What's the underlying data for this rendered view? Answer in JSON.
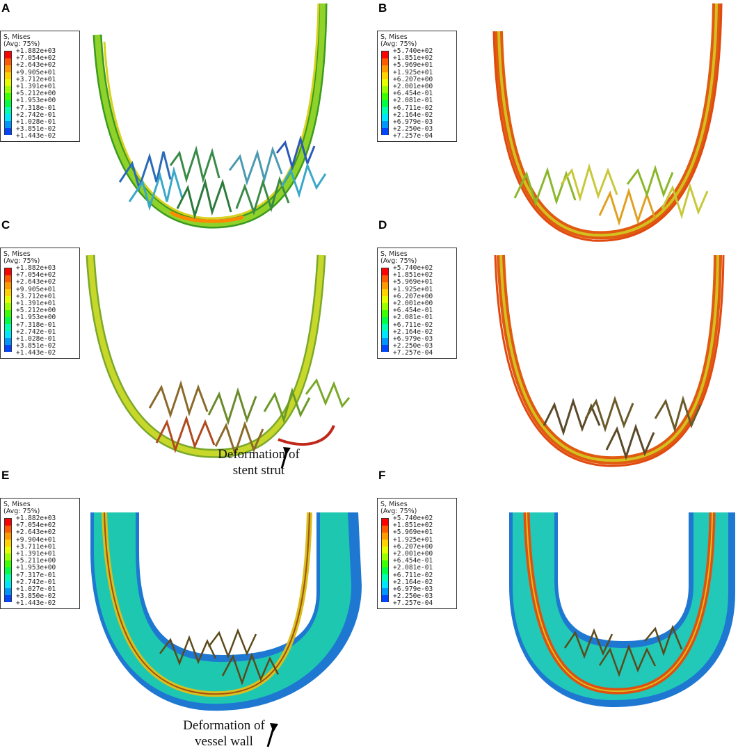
{
  "legend_title": "S, Mises\n(Avg: 75%)",
  "legend_colors": [
    "#ff0000",
    "#ff5a00",
    "#ff9a00",
    "#ffd200",
    "#e6ff00",
    "#9aff00",
    "#3cff00",
    "#00ff44",
    "#00ffb0",
    "#00e6ff",
    "#0096ff",
    "#0046ff",
    "#0000ff"
  ],
  "scale_a": [
    "+1.882e+03",
    "+7.054e+02",
    "+2.643e+02",
    "+9.905e+01",
    "+3.712e+01",
    "+1.391e+01",
    "+5.212e+00",
    "+1.953e+00",
    "+7.318e-01",
    "+2.742e-01",
    "+1.028e-01",
    "+3.851e-02",
    "+1.443e-02"
  ],
  "scale_b": [
    "+5.740e+02",
    "+1.851e+02",
    "+5.969e+01",
    "+1.925e+01",
    "+6.207e+00",
    "+2.001e+00",
    "+6.454e-01",
    "+2.081e-01",
    "+6.711e-02",
    "+2.164e-02",
    "+6.979e-03",
    "+2.250e-03",
    "+7.257e-04"
  ],
  "scale_e": [
    "+1.882e+03",
    "+7.054e+02",
    "+2.643e+02",
    "+9.904e+01",
    "+3.711e+01",
    "+1.391e+01",
    "+5.211e+00",
    "+1.953e+00",
    "+7.317e-01",
    "+2.742e-01",
    "+1.027e-01",
    "+3.850e-02",
    "+1.443e-02"
  ],
  "panels": [
    {
      "letter": "A"
    },
    {
      "letter": "B"
    },
    {
      "letter": "C"
    },
    {
      "letter": "D"
    },
    {
      "letter": "E"
    },
    {
      "letter": "F"
    }
  ],
  "annotations": {
    "stent": {
      "line1": "Deformation of",
      "line2": "stent strut"
    },
    "vessel": {
      "line1": "Deformation of",
      "line2": "vessel wall"
    }
  }
}
